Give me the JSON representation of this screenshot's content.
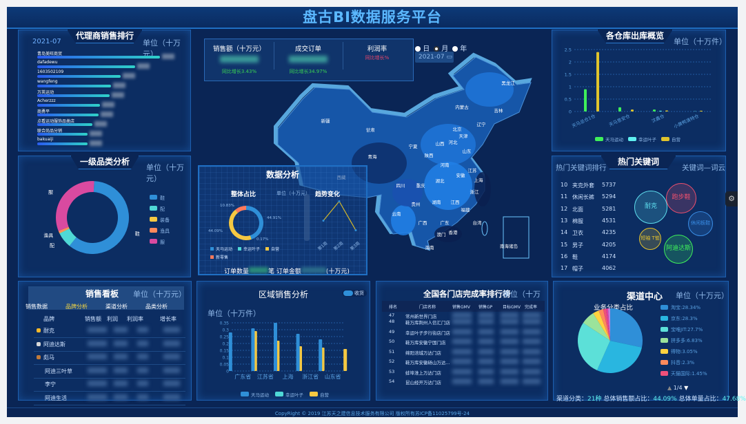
{
  "header": {
    "title": "盘古BI数据服务平台"
  },
  "agents": {
    "title": "代理商销售排行",
    "date": "2021-07",
    "unit": "单位（十万元）",
    "items": [
      {
        "name": "青岛美旺商贸",
        "fill": 1.0
      },
      {
        "name": "dafadewu",
        "fill": 0.8
      },
      {
        "name": "1603502109",
        "fill": 0.68
      },
      {
        "name": "wangfeng",
        "fill": 0.6
      },
      {
        "name": "万英运动",
        "fill": 0.59
      },
      {
        "name": "Acherzzz",
        "fill": 0.51
      },
      {
        "name": "商勇平",
        "fill": 0.5
      },
      {
        "name": "点看运动服饰品类店",
        "fill": 0.45
      },
      {
        "name": "联合尚品分销",
        "fill": 0.41
      },
      {
        "name": "bakuaiji",
        "fill": 0.41
      }
    ]
  },
  "category": {
    "title": "一级品类分析",
    "unit": "单位（十万元）",
    "slices": [
      {
        "name": "鞋",
        "share": 0.6,
        "color": "#2f8fd8"
      },
      {
        "name": "配",
        "share": 0.07,
        "color": "#4fd8d6"
      },
      {
        "name": "装备",
        "share": 0.002,
        "color": "#f5c842"
      },
      {
        "name": "渔具",
        "share": 0.01,
        "color": "#ff8a5c"
      },
      {
        "name": "服",
        "share": 0.318,
        "color": "#d94aa0"
      }
    ]
  },
  "kpi": {
    "items": [
      {
        "label": "销售额（十万元）",
        "change": "同比增长3.43%",
        "change_color": "#39d353"
      },
      {
        "label": "成交订单",
        "change": "同比增长34.97%",
        "change_color": "#39d353"
      },
      {
        "label": "利润率",
        "change": "同比增长%",
        "change_color": "#e8456a"
      }
    ],
    "period_options": [
      "日",
      "月",
      "年"
    ],
    "period_selected": "月",
    "date": "2021-07"
  },
  "map": {
    "provinces": [
      "黑龙江",
      "吉林",
      "辽宁",
      "内蒙古",
      "北京",
      "天津",
      "河北",
      "山西",
      "山东",
      "宁夏",
      "甘肃",
      "新疆",
      "青海",
      "西藏",
      "陕西",
      "河南",
      "江苏",
      "上海",
      "安徽",
      "湖北",
      "四川",
      "重庆",
      "浙江",
      "江西",
      "湖南",
      "贵州",
      "云南",
      "福建",
      "台湾",
      "广西",
      "广东",
      "香港",
      "澳门",
      "海南"
    ],
    "inset_label": "南海诸岛"
  },
  "analysis": {
    "title": "数据分析",
    "share_title": "整体占比",
    "trend_title": "趋势变化",
    "trend_unit": "单位（十万元）",
    "share": [
      {
        "name": "天马运动",
        "pct": 44.91,
        "label": "44.91%",
        "color": "#2f8fd8"
      },
      {
        "name": "幸运叶子",
        "pct": 0.17,
        "label": "0.17%",
        "color": "#4fd8d6"
      },
      {
        "name": "自营",
        "pct": 44.09,
        "label": "44.09%",
        "color": "#f5c842"
      },
      {
        "name": "新零售",
        "pct": 10.83,
        "label": "10.83%",
        "color": "#ff7a5c"
      }
    ],
    "trend": {
      "categories": [
        "第1周",
        "第2周",
        "第3周"
      ],
      "values": [
        0.45,
        0.85,
        0.25
      ]
    },
    "orders_label": "订单数量",
    "orders_suffix": "笔",
    "amount_label": "订单金额",
    "amount_suffix": "(十万元)"
  },
  "warehouse": {
    "title": "各仓库出库概览",
    "unit": "单位（十万件）",
    "chart_data": {
      "type": "bar",
      "categories": [
        "天马总仓1仓",
        "天马意安仓",
        "汶鑫仓",
        "小黄鸭清特仓"
      ],
      "ylim": [
        0,
        2.5
      ],
      "ticks": [
        "0",
        "0.5",
        "1",
        "1.5",
        "2",
        "2.5"
      ],
      "series": [
        {
          "name": "天马运动",
          "color": "#3ff05a",
          "values": [
            0.9,
            0.17,
            0.08,
            0
          ]
        },
        {
          "name": "幸运叶子",
          "color": "#5ff0f0",
          "values": [
            0,
            0,
            0.03,
            0.01
          ]
        },
        {
          "name": "自营",
          "color": "#e0c42c",
          "values": [
            2.4,
            0.08,
            0.04,
            0.03
          ]
        }
      ]
    }
  },
  "keywords": {
    "title": "热门关键词",
    "left_label": "热门关键词排行",
    "right_label": "关键词—词云",
    "rows": [
      {
        "rank": "10",
        "word": "夹克外套",
        "count": "5737"
      },
      {
        "rank": "11",
        "word": "休闲长裤",
        "count": "5294"
      },
      {
        "rank": "12",
        "word": "北面",
        "count": "5281"
      },
      {
        "rank": "13",
        "word": "棉服",
        "count": "4531"
      },
      {
        "rank": "14",
        "word": "卫衣",
        "count": "4235"
      },
      {
        "rank": "15",
        "word": "男子",
        "count": "4205"
      },
      {
        "rank": "16",
        "word": "鞋",
        "count": "4174"
      },
      {
        "rank": "17",
        "word": "帽子",
        "count": "4062"
      }
    ],
    "cloud": [
      {
        "word": "耐克",
        "color": "#5fe0f0"
      },
      {
        "word": "跑步鞋",
        "color": "#f0506e"
      },
      {
        "word": "休闲板鞋",
        "color": "#3a8ee6"
      },
      {
        "word": "短袖 T恤",
        "color": "#e8c42c"
      },
      {
        "word": "阿迪达斯",
        "color": "#3ff05a"
      }
    ]
  },
  "board": {
    "title": "销售看板",
    "unit": "单位（十万元）",
    "tabs": [
      "销售数据",
      "品牌分析",
      "渠道分析",
      "品类分析"
    ],
    "active_tab": "品牌分析",
    "columns": [
      "品牌",
      "销售额",
      "利润",
      "利润率",
      "增长率"
    ],
    "rows": [
      {
        "brand": "耐克",
        "medal": "#f5b82a"
      },
      {
        "brand": "阿迪达斯",
        "medal": "#d8d8d8"
      },
      {
        "brand": "彪马",
        "medal": "#c07a3a"
      },
      {
        "brand": "阿迪三叶草",
        "medal": ""
      },
      {
        "brand": "李宁",
        "medal": ""
      },
      {
        "brand": "阿迪生活",
        "medal": ""
      }
    ]
  },
  "region": {
    "title": "区域销售分析",
    "toggle_label": "收货",
    "unit": "单位（十万件）",
    "chart_data": {
      "type": "bar",
      "categories": [
        "广东省",
        "江苏省",
        "上海",
        "浙江省",
        "山东省"
      ],
      "ylim": [
        0,
        0.35
      ],
      "ticks": [
        "0",
        "0.05",
        "0.1",
        "0.15",
        "0.2",
        "0.25",
        "0.3",
        "0.35"
      ],
      "series": [
        {
          "name": "天马运动",
          "color": "#2f8fd8",
          "values": [
            0.28,
            0.31,
            0.35,
            0.27,
            0.23
          ]
        },
        {
          "name": "幸运叶子",
          "color": "#4fd8d6",
          "values": [
            0,
            0,
            0,
            0,
            0
          ]
        },
        {
          "name": "自营",
          "color": "#f5c842",
          "values": [
            0.29,
            0.22,
            0.18,
            0.17,
            0.16
          ]
        }
      ]
    }
  },
  "stores": {
    "title": "全国各门店完成率排行榜",
    "unit": "单位（十万元）",
    "columns": [
      "排名",
      "门店名称",
      "销售GMV",
      "销售GP",
      "目标GMV",
      "完成率"
    ],
    "rows": [
      {
        "rank": "47",
        "name": "常州新世界门店"
      },
      {
        "rank": "48",
        "name": "鞋万库荆州人信汇门店"
      },
      {
        "rank": "49",
        "name": "幸运叶子步行街店门店"
      },
      {
        "rank": "50",
        "name": "鞋万库安徽宁国门店"
      },
      {
        "rank": "51",
        "name": "绵阳涪城万达门店"
      },
      {
        "rank": "52",
        "name": "鞋万库安徽砀山万达..."
      },
      {
        "rank": "53",
        "name": "蚌埠淮上万达门店"
      },
      {
        "rank": "54",
        "name": "昆山经开万达门店"
      }
    ]
  },
  "channel": {
    "title": "渠道中心",
    "unit": "单位（十万元）",
    "pie_title": "业务分类占比",
    "page": "1/4",
    "slices": [
      {
        "name": "淘宝",
        "pct": 28.34,
        "label": "淘宝:28.34%",
        "color": "#2f8fd8"
      },
      {
        "name": "京东",
        "pct": 28.3,
        "label": "京东:28.3%",
        "color": "#29b6e0"
      },
      {
        "name": "宝唯JIT",
        "pct": 27.7,
        "label": "宝唯JIT:27.7%",
        "color": "#5ce0d8"
      },
      {
        "name": "拼多多",
        "pct": 6.83,
        "label": "拼多多:6.83%",
        "color": "#9be39b"
      },
      {
        "name": "得物",
        "pct": 3.05,
        "label": "得物:3.05%",
        "color": "#ffd23f"
      },
      {
        "name": "抖音",
        "pct": 2.3,
        "label": "抖音:2.3%",
        "color": "#ff8a5c"
      },
      {
        "name": "天猫国际",
        "pct": 1.45,
        "label": "天猫国际:1.45%",
        "color": "#f0507a"
      }
    ],
    "other_colors": [
      "#e040a0",
      "#c080e0"
    ],
    "summary_label1": "渠道分类：",
    "summary_value1": "21种",
    "summary_label2": "总体销售额占比：",
    "summary_value2": "44.09%",
    "summary_label3": "总体单量占比：",
    "summary_value3": "47.68%"
  },
  "footer": {
    "text": "CopyRight © 2019 江苏天之建信息技术服务有限公司 版权所有苏ICP备11025799号-24"
  }
}
